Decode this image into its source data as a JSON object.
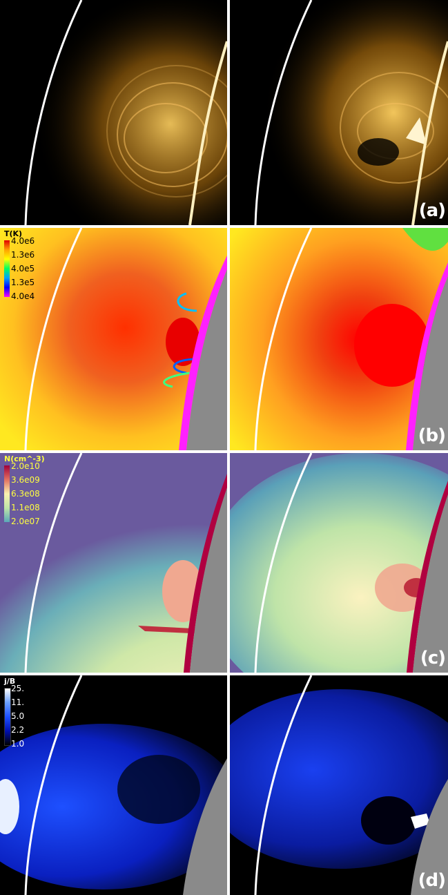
{
  "rows": [
    {
      "id": "a",
      "label": "(a)",
      "colorbar": null
    },
    {
      "id": "b",
      "label": "(b)",
      "colorbar": {
        "title": "T(K)",
        "ticks": [
          "4.0e6",
          "1.3e6",
          "4.0e5",
          "1.3e5",
          "4.0e4"
        ],
        "colors": [
          "#e00000",
          "#ffff00",
          "#00ff60",
          "#0000ff",
          "#ff00ff"
        ],
        "text_color": "#000000"
      }
    },
    {
      "id": "c",
      "label": "(c)",
      "colorbar": {
        "title": "N(cm^-3)",
        "ticks": [
          "2.0e10",
          "3.6e09",
          "6.3e08",
          "1.1e08",
          "2.0e07"
        ],
        "colors": [
          "#a0003a",
          "#e27060",
          "#fbf0b0",
          "#bfe4a8",
          "#5aa8b8"
        ],
        "text_color": "#ffff40"
      }
    },
    {
      "id": "d",
      "label": "(d)",
      "colorbar": {
        "title": "j/B",
        "ticks": [
          "25.",
          "11.",
          "5.0",
          "2.2",
          "1.0"
        ],
        "colors": [
          "#ffffff",
          "#6aa0ff",
          "#1e50ff",
          "#0010b0",
          "#000000"
        ],
        "text_color": "#ffffff"
      }
    }
  ],
  "colors": {
    "a_bg": "#000000",
    "a_glow": "#ffb020",
    "b_bg": "#ffd020",
    "c_bg": "#6a5a9e",
    "d_bg": "#000000",
    "limb_gray": "#8a8a8a"
  }
}
